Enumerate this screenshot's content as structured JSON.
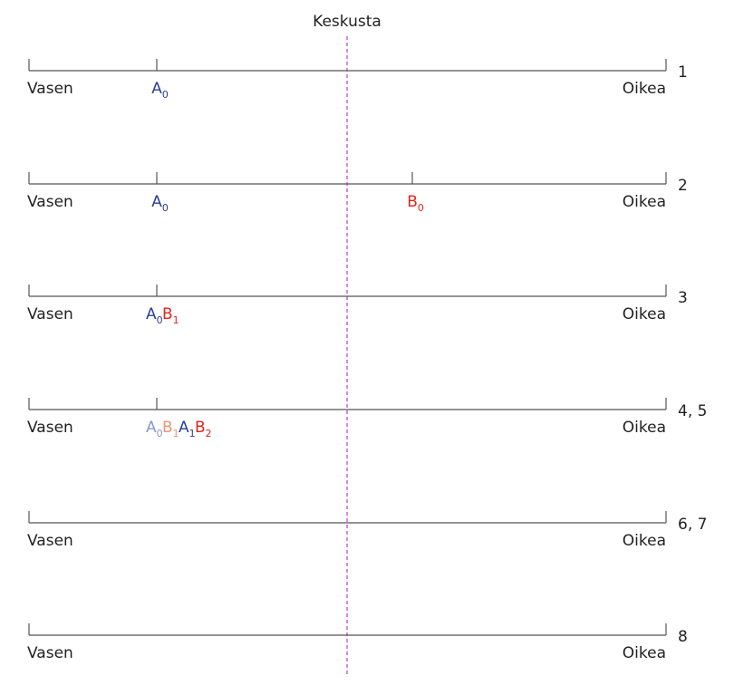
{
  "center_label": "Keskusta",
  "left_label": "Vasen",
  "right_label": "Oikea",
  "colors": {
    "blue": "#2b3f9a",
    "red": "#e0261b",
    "blue_faded": "#8a97cc",
    "red_faded": "#eb9478",
    "axis": "#555555",
    "center_line": "#c44bd6"
  },
  "rows": [
    {
      "step": "1",
      "ticks": [
        "A"
      ],
      "markers": [
        {
          "at": "A",
          "items": [
            {
              "letter": "A",
              "sub": "0",
              "color": "blue"
            }
          ]
        }
      ]
    },
    {
      "step": "2",
      "ticks": [
        "A",
        "B"
      ],
      "markers": [
        {
          "at": "A",
          "items": [
            {
              "letter": "A",
              "sub": "0",
              "color": "blue"
            }
          ]
        },
        {
          "at": "B",
          "items": [
            {
              "letter": "B",
              "sub": "0",
              "color": "red"
            }
          ]
        }
      ]
    },
    {
      "step": "3",
      "ticks": [
        "A"
      ],
      "markers": [
        {
          "at": "A",
          "items": [
            {
              "letter": "A",
              "sub": "0",
              "color": "blue"
            },
            {
              "letter": "B",
              "sub": "1",
              "color": "red"
            }
          ]
        }
      ]
    },
    {
      "step": "4, 5",
      "ticks": [
        "A"
      ],
      "markers": [
        {
          "at": "A",
          "items": [
            {
              "letter": "A",
              "sub": "0",
              "color": "blue_faded"
            },
            {
              "letter": "B",
              "sub": "1",
              "color": "red_faded"
            },
            {
              "letter": "A",
              "sub": "1",
              "color": "blue"
            },
            {
              "letter": "B",
              "sub": "2",
              "color": "red"
            }
          ]
        }
      ]
    },
    {
      "step": "6, 7",
      "ticks": [],
      "markers": []
    },
    {
      "step": "8",
      "ticks": [],
      "markers": []
    }
  ]
}
